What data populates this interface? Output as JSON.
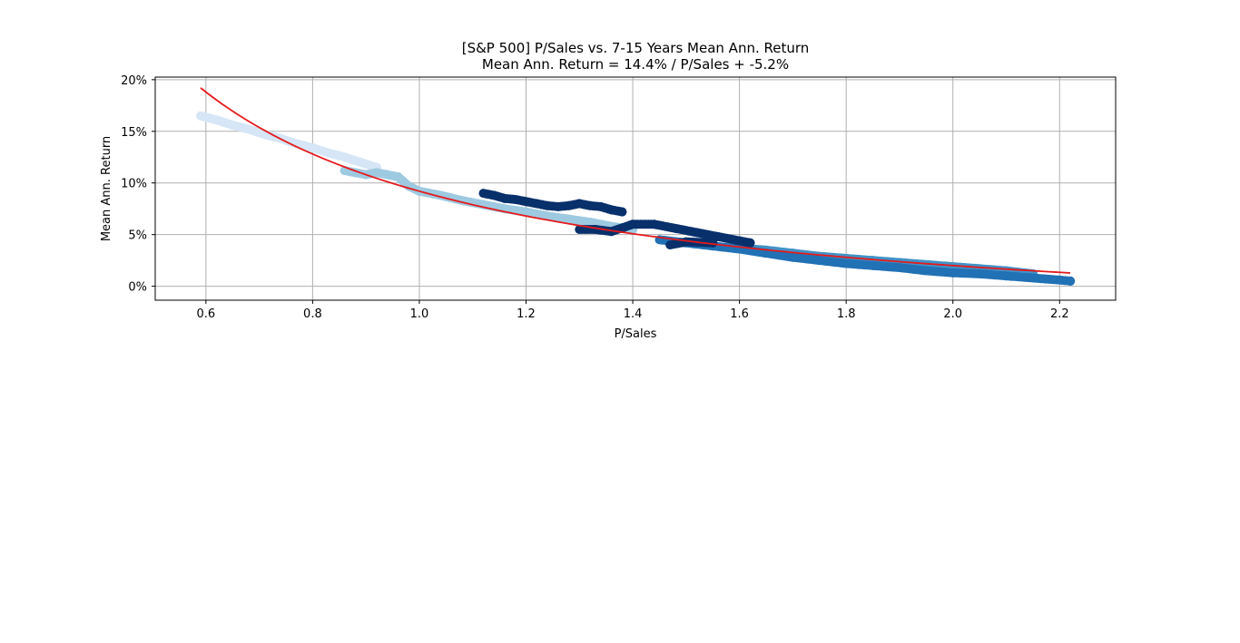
{
  "chart_data": {
    "type": "scatter",
    "title": "[S&P 500] P/Sales vs. 7-15 Years Mean Ann. Return",
    "subtitle": "Mean Ann. Return = 14.4% / P/Sales + -5.2%",
    "xlabel": "P/Sales",
    "ylabel": "Mean Ann. Return",
    "xlim": [
      0.505,
      2.305
    ],
    "ylim": [
      -0.0135,
      0.2025
    ],
    "xticks": [
      0.6,
      0.8,
      1.0,
      1.2,
      1.4,
      1.6,
      1.8,
      2.0,
      2.2
    ],
    "xtick_labels": [
      "0.6",
      "0.8",
      "1.0",
      "1.2",
      "1.4",
      "1.6",
      "1.8",
      "2.0",
      "2.2"
    ],
    "yticks": [
      0.0,
      0.05,
      0.1,
      0.15,
      0.2
    ],
    "ytick_labels": [
      "0%",
      "5%",
      "10%",
      "15%",
      "20%"
    ],
    "grid": true,
    "series": [
      {
        "color": "#d6e6f6",
        "points": [
          [
            0.59,
            0.165
          ],
          [
            0.62,
            0.161
          ],
          [
            0.65,
            0.156
          ],
          [
            0.68,
            0.152
          ],
          [
            0.71,
            0.147
          ],
          [
            0.74,
            0.143
          ],
          [
            0.77,
            0.138
          ],
          [
            0.8,
            0.134
          ],
          [
            0.83,
            0.129
          ],
          [
            0.86,
            0.125
          ],
          [
            0.89,
            0.12
          ],
          [
            0.92,
            0.115
          ]
        ]
      },
      {
        "color": "#9ecae1",
        "points": [
          [
            0.86,
            0.112
          ],
          [
            0.88,
            0.11
          ],
          [
            0.9,
            0.108
          ],
          [
            0.92,
            0.11
          ],
          [
            0.94,
            0.108
          ],
          [
            0.96,
            0.106
          ],
          [
            0.98,
            0.097
          ],
          [
            1.0,
            0.092
          ],
          [
            1.04,
            0.088
          ],
          [
            1.08,
            0.083
          ],
          [
            1.12,
            0.079
          ],
          [
            1.16,
            0.075
          ],
          [
            1.2,
            0.072
          ],
          [
            1.24,
            0.068
          ],
          [
            1.28,
            0.065
          ],
          [
            1.32,
            0.062
          ],
          [
            1.36,
            0.058
          ],
          [
            1.4,
            0.055
          ]
        ]
      },
      {
        "color": "#4292c6",
        "points": [
          [
            1.6,
            0.037
          ],
          [
            1.65,
            0.035
          ],
          [
            1.7,
            0.032
          ],
          [
            1.75,
            0.029
          ],
          [
            1.8,
            0.027
          ],
          [
            1.85,
            0.025
          ],
          [
            1.9,
            0.023
          ],
          [
            1.95,
            0.021
          ],
          [
            2.0,
            0.019
          ],
          [
            2.05,
            0.017
          ],
          [
            2.1,
            0.015
          ],
          [
            2.15,
            0.012
          ]
        ]
      },
      {
        "color": "#2171b5",
        "points": [
          [
            1.45,
            0.045
          ],
          [
            1.5,
            0.042
          ],
          [
            1.55,
            0.039
          ],
          [
            1.6,
            0.036
          ],
          [
            1.65,
            0.032
          ],
          [
            1.7,
            0.028
          ],
          [
            1.75,
            0.025
          ],
          [
            1.8,
            0.022
          ],
          [
            1.85,
            0.02
          ],
          [
            1.9,
            0.018
          ],
          [
            1.95,
            0.015
          ],
          [
            2.0,
            0.013
          ],
          [
            2.05,
            0.012
          ],
          [
            2.1,
            0.01
          ],
          [
            2.15,
            0.008
          ],
          [
            2.2,
            0.006
          ],
          [
            2.22,
            0.005
          ]
        ]
      },
      {
        "color": "#08306b",
        "points": [
          [
            1.12,
            0.09
          ],
          [
            1.14,
            0.088
          ],
          [
            1.16,
            0.085
          ],
          [
            1.18,
            0.084
          ],
          [
            1.2,
            0.082
          ],
          [
            1.22,
            0.08
          ],
          [
            1.24,
            0.078
          ],
          [
            1.26,
            0.077
          ],
          [
            1.28,
            0.078
          ],
          [
            1.3,
            0.08
          ],
          [
            1.32,
            0.078
          ],
          [
            1.34,
            0.077
          ],
          [
            1.36,
            0.074
          ],
          [
            1.38,
            0.072
          ],
          [
            1.3,
            0.055
          ],
          [
            1.33,
            0.055
          ],
          [
            1.36,
            0.053
          ],
          [
            1.4,
            0.06
          ],
          [
            1.44,
            0.06
          ],
          [
            1.48,
            0.056
          ],
          [
            1.52,
            0.052
          ],
          [
            1.56,
            0.048
          ],
          [
            1.6,
            0.044
          ],
          [
            1.62,
            0.042
          ],
          [
            1.47,
            0.04
          ],
          [
            1.5,
            0.043
          ],
          [
            1.55,
            0.042
          ]
        ]
      }
    ],
    "fit_line": {
      "color": "#e41a1c",
      "coef_a": 0.144,
      "coef_b": -0.052,
      "x_start": 0.59,
      "x_end": 2.22
    }
  }
}
